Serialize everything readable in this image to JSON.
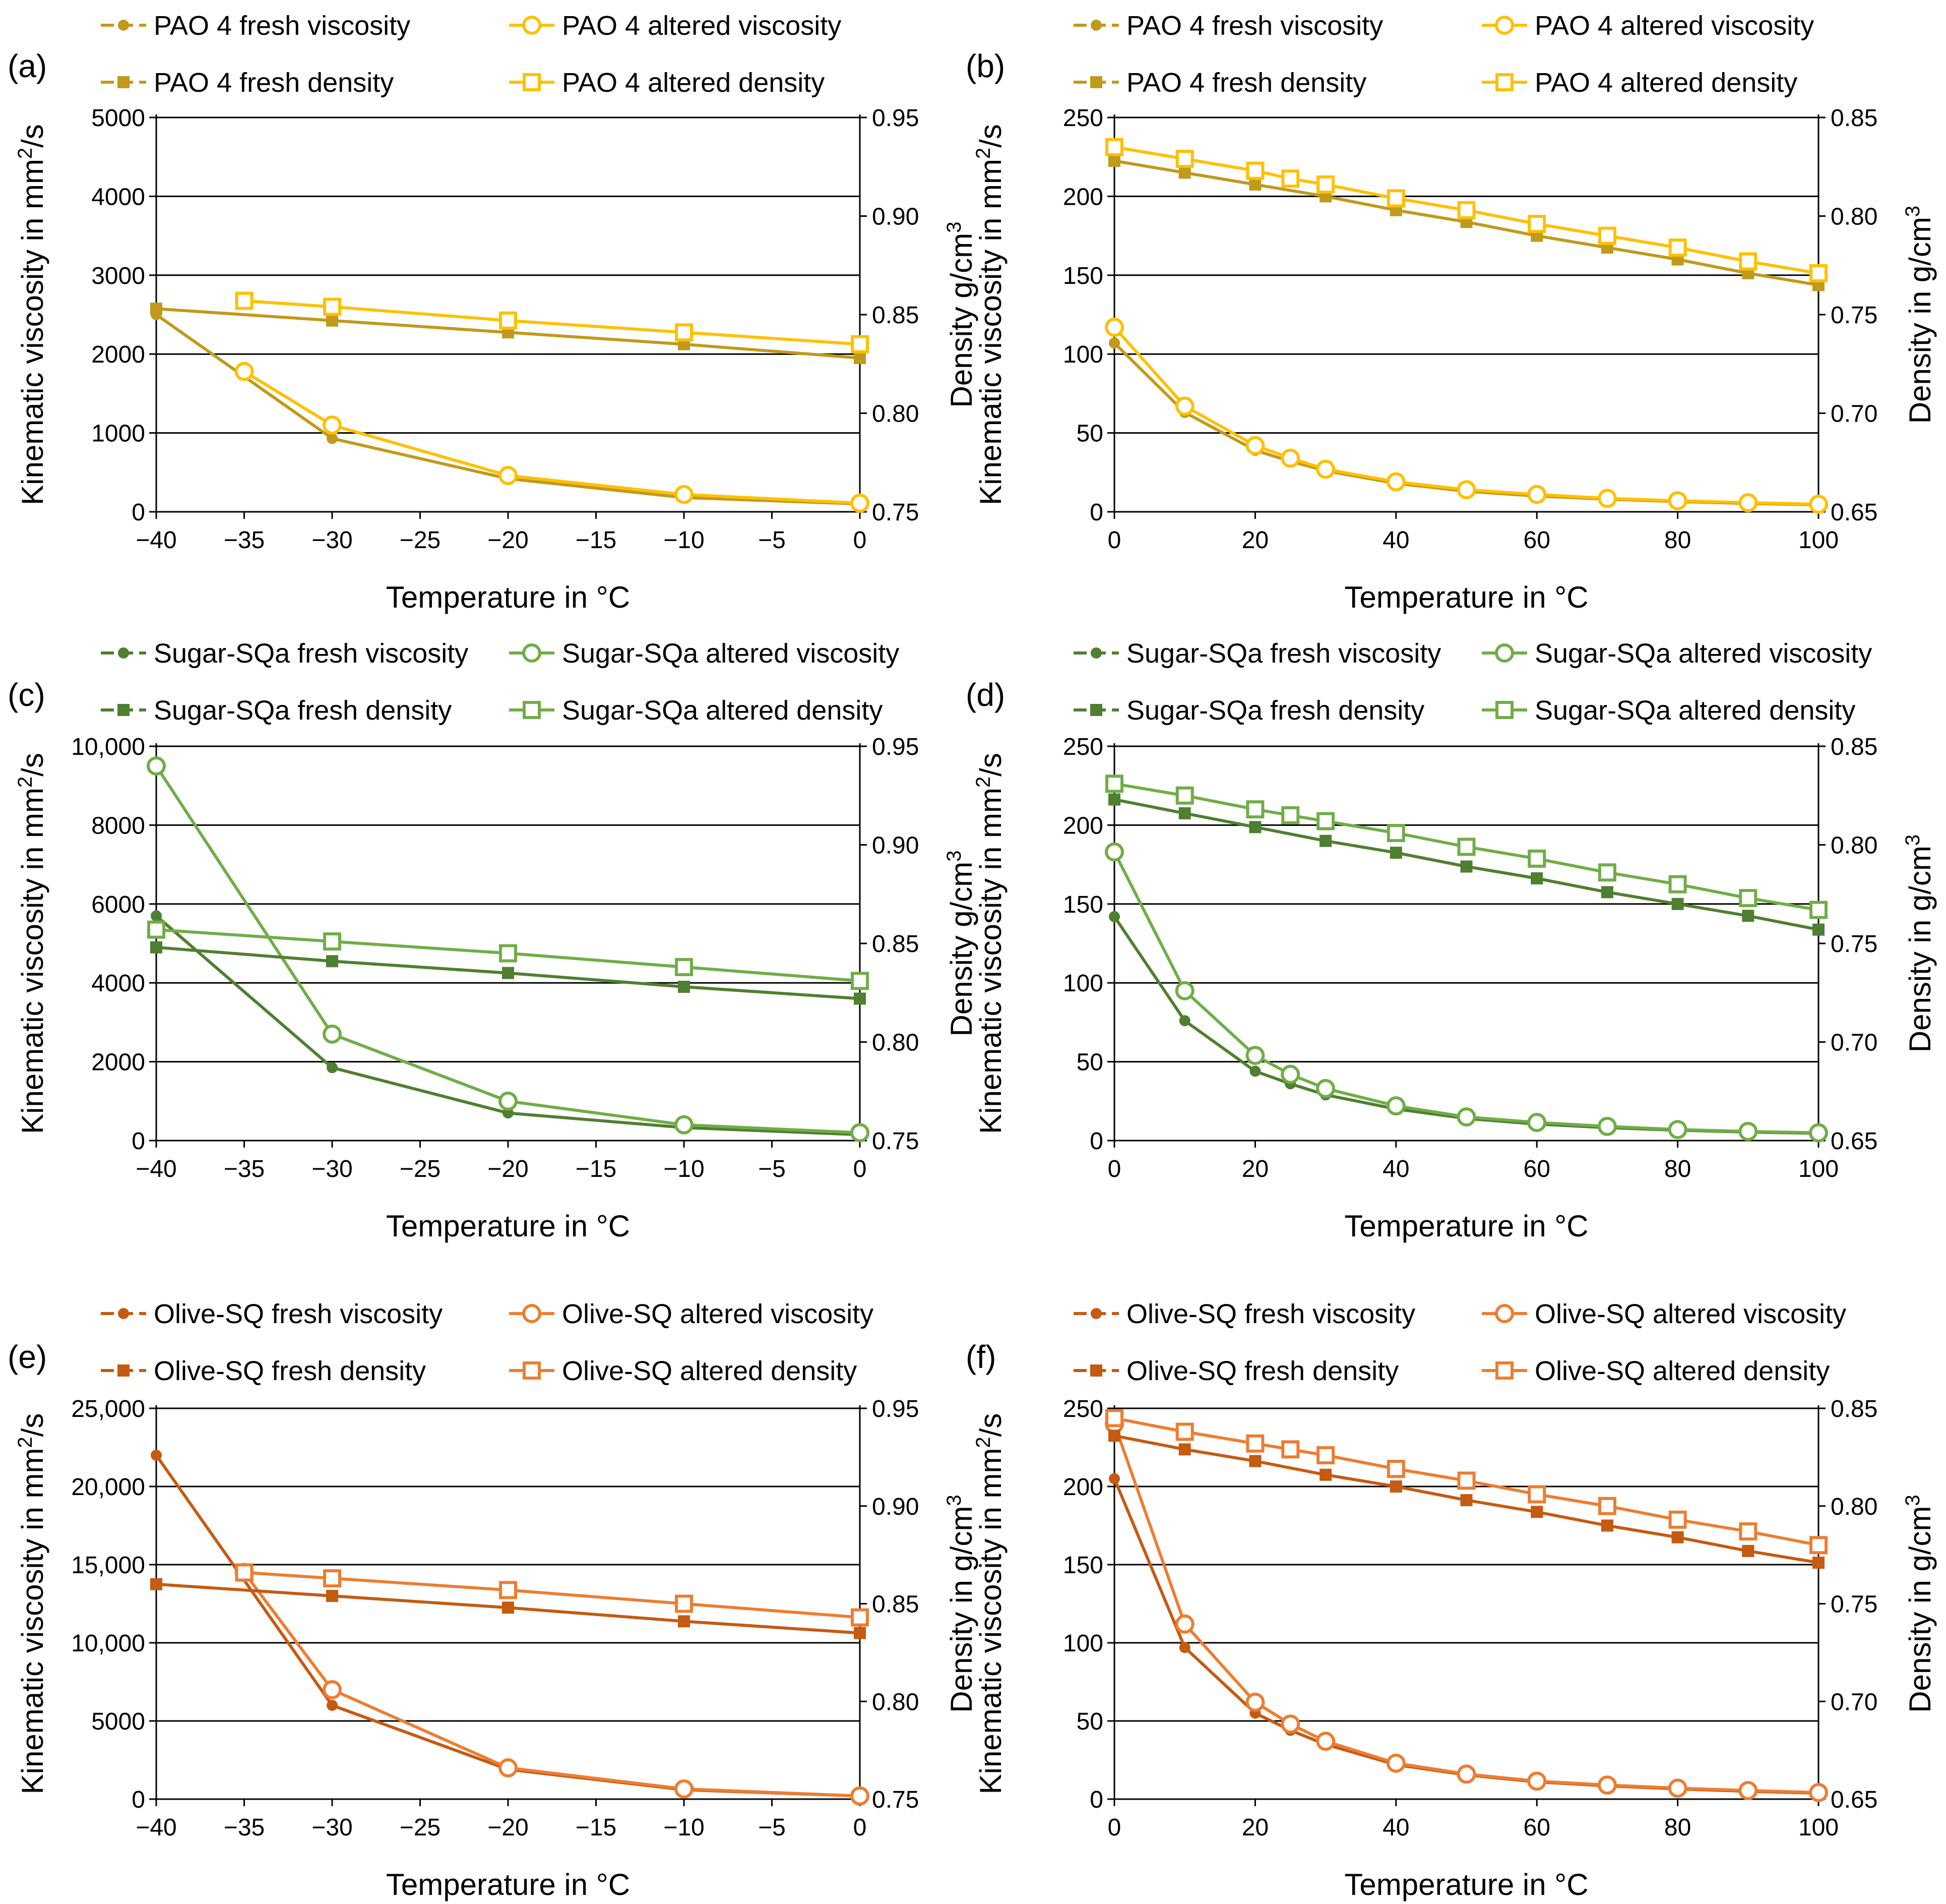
{
  "figure_title": "",
  "colors": {
    "pao_fresh": "#C09A1B",
    "pao_altered": "#FFC000",
    "sugar_fresh": "#4F7F30",
    "sugar_altered": "#70AD47",
    "olive_fresh": "#C55A11",
    "olive_altered": "#ED7D31",
    "grid": "#000000"
  },
  "chart_data": [
    {
      "type": "line",
      "panel_label": "(a)",
      "legend": [
        "PAO 4 fresh viscosity",
        "PAO 4 altered viscosity",
        "PAO 4 fresh density",
        "PAO 4 altered density"
      ],
      "xlabel": "Temperature in °C",
      "ylabel": "Kinematic viscosity in mm²/s",
      "ylabel_main": "Kinematic viscosity in mm",
      "ylabel_sup": "2",
      "ylabel_tail": "/s",
      "y2label": "Density g/cm³",
      "y2label_main": "Density g/cm",
      "y2label_sup": "3",
      "xlim": [
        -40,
        0
      ],
      "ylim": [
        0,
        5000
      ],
      "y2lim": [
        0.75,
        0.95
      ],
      "xticks": [
        "−40",
        "−35",
        "−30",
        "−25",
        "−20",
        "−15",
        "−10",
        "−5",
        "0"
      ],
      "yticks": [
        "0",
        "1000",
        "2000",
        "3000",
        "4000",
        "5000"
      ],
      "y2ticks": [
        "0.75",
        "0.80",
        "0.85",
        "0.90",
        "0.95"
      ],
      "series": [
        {
          "name": "PAO 4 fresh viscosity",
          "axis": "left",
          "marker": "dot",
          "color": "pao_fresh",
          "x": [
            -40,
            -30,
            -20,
            -10,
            0
          ],
          "values": [
            2500,
            930,
            420,
            180,
            100
          ]
        },
        {
          "name": "PAO 4 altered viscosity",
          "axis": "left",
          "marker": "circle",
          "color": "pao_altered",
          "x": [
            -35,
            -30,
            -20,
            -10,
            0
          ],
          "values": [
            1780,
            1100,
            460,
            220,
            110
          ]
        },
        {
          "name": "PAO 4 fresh density",
          "axis": "right",
          "marker": "square",
          "color": "pao_fresh",
          "x": [
            -40,
            -30,
            -20,
            -10,
            0
          ],
          "values": [
            0.853,
            0.847,
            0.841,
            0.835,
            0.828
          ]
        },
        {
          "name": "PAO 4 altered density",
          "axis": "right",
          "marker": "square-open",
          "color": "pao_altered",
          "x": [
            -35,
            -30,
            -20,
            -10,
            0
          ],
          "values": [
            0.857,
            0.854,
            0.847,
            0.841,
            0.835
          ]
        }
      ]
    },
    {
      "type": "line",
      "panel_label": "(b)",
      "legend": [
        "PAO 4 fresh viscosity",
        "PAO 4 altered viscosity",
        "PAO 4 fresh density",
        "PAO 4 altered density"
      ],
      "xlabel": "Temperature in °C",
      "ylabel": "Kinematic viscosity in mm²/s",
      "ylabel_main": "Kinematic viscosity in mm",
      "ylabel_sup": "2",
      "ylabel_tail": "/s",
      "y2label": "Density in g/cm³",
      "y2label_main": "Density in g/cm",
      "y2label_sup": "3",
      "xlim": [
        0,
        100
      ],
      "ylim": [
        0,
        250
      ],
      "y2lim": [
        0.65,
        0.85
      ],
      "xticks": [
        "0",
        "20",
        "40",
        "60",
        "80",
        "100"
      ],
      "yticks": [
        "0",
        "50",
        "100",
        "150",
        "200",
        "250"
      ],
      "y2ticks": [
        "0.65",
        "0.70",
        "0.75",
        "0.80",
        "0.85"
      ],
      "series": [
        {
          "name": "PAO 4 fresh viscosity",
          "axis": "left",
          "marker": "dot",
          "color": "pao_fresh",
          "x": [
            0,
            10,
            20,
            25,
            30,
            40,
            50,
            60,
            70,
            80,
            90,
            100
          ],
          "values": [
            107,
            63,
            39,
            32,
            26,
            18,
            13,
            10,
            8,
            6.5,
            5.3,
            4.4
          ]
        },
        {
          "name": "PAO 4 altered viscosity",
          "axis": "left",
          "marker": "circle",
          "color": "pao_altered",
          "x": [
            0,
            10,
            20,
            25,
            30,
            40,
            50,
            60,
            70,
            80,
            90,
            100
          ],
          "values": [
            117,
            67,
            42,
            34,
            27,
            19,
            14,
            11,
            8.5,
            7,
            5.8,
            4.8
          ]
        },
        {
          "name": "PAO 4 fresh density",
          "axis": "right",
          "marker": "square",
          "color": "pao_fresh",
          "x": [
            0,
            10,
            20,
            30,
            40,
            50,
            60,
            70,
            80,
            90,
            100
          ],
          "values": [
            0.828,
            0.822,
            0.816,
            0.81,
            0.803,
            0.797,
            0.79,
            0.784,
            0.778,
            0.771,
            0.765
          ]
        },
        {
          "name": "PAO 4 altered density",
          "axis": "right",
          "marker": "square-open",
          "color": "pao_altered",
          "x": [
            0,
            10,
            20,
            25,
            30,
            40,
            50,
            60,
            70,
            80,
            90,
            100
          ],
          "values": [
            0.835,
            0.829,
            0.823,
            0.819,
            0.816,
            0.809,
            0.803,
            0.796,
            0.79,
            0.784,
            0.777,
            0.771
          ]
        }
      ]
    },
    {
      "type": "line",
      "panel_label": "(c)",
      "legend": [
        "Sugar-SQa fresh viscosity",
        "Sugar-SQa altered viscosity",
        "Sugar-SQa fresh density",
        "Sugar-SQa altered density"
      ],
      "xlabel": "Temperature in °C",
      "ylabel": "Kinematic viscosity in mm²/s",
      "ylabel_main": "Kinematic viscosity in mm",
      "ylabel_sup": "2",
      "ylabel_tail": "/s",
      "y2label": "Density g/cm³",
      "y2label_main": "Density g/cm",
      "y2label_sup": "3",
      "xlim": [
        -40,
        0
      ],
      "ylim": [
        0,
        10000
      ],
      "y2lim": [
        0.75,
        0.95
      ],
      "xticks": [
        "−40",
        "−35",
        "−30",
        "−25",
        "−20",
        "−15",
        "−10",
        "−5",
        "0"
      ],
      "yticks": [
        "0",
        "2000",
        "4000",
        "6000",
        "8000",
        "10,000"
      ],
      "y2ticks": [
        "0.75",
        "0.80",
        "0.85",
        "0.90",
        "0.95"
      ],
      "series": [
        {
          "name": "Sugar-SQa fresh viscosity",
          "axis": "left",
          "marker": "dot",
          "color": "sugar_fresh",
          "x": [
            -40,
            -30,
            -20,
            -10,
            0
          ],
          "values": [
            5700,
            1850,
            700,
            330,
            150
          ]
        },
        {
          "name": "Sugar-SQa altered viscosity",
          "axis": "left",
          "marker": "circle",
          "color": "sugar_altered",
          "x": [
            -40,
            -30,
            -20,
            -10,
            0
          ],
          "values": [
            9500,
            2700,
            1000,
            400,
            200
          ]
        },
        {
          "name": "Sugar-SQa fresh density",
          "axis": "right",
          "marker": "square",
          "color": "sugar_fresh",
          "x": [
            -40,
            -30,
            -20,
            -10,
            0
          ],
          "values": [
            0.848,
            0.841,
            0.835,
            0.828,
            0.822
          ]
        },
        {
          "name": "Sugar-SQa altered density",
          "axis": "right",
          "marker": "square-open",
          "color": "sugar_altered",
          "x": [
            -40,
            -30,
            -20,
            -10,
            0
          ],
          "values": [
            0.857,
            0.851,
            0.845,
            0.838,
            0.831
          ]
        }
      ]
    },
    {
      "type": "line",
      "panel_label": "(d)",
      "legend": [
        "Sugar-SQa fresh viscosity",
        "Sugar-SQa altered viscosity",
        "Sugar-SQa fresh density",
        "Sugar-SQa altered density"
      ],
      "xlabel": "Temperature in °C",
      "ylabel": "Kinematic viscosity in mm²/s",
      "ylabel_main": "Kinematic viscosity in mm",
      "ylabel_sup": "2",
      "ylabel_tail": "/s",
      "y2label": "Density in g/cm³",
      "y2label_main": "Density in g/cm",
      "y2label_sup": "3",
      "xlim": [
        0,
        100
      ],
      "ylim": [
        0,
        250
      ],
      "y2lim": [
        0.65,
        0.85
      ],
      "xticks": [
        "0",
        "20",
        "40",
        "60",
        "80",
        "100"
      ],
      "yticks": [
        "0",
        "50",
        "100",
        "150",
        "200",
        "250"
      ],
      "y2ticks": [
        "0.65",
        "0.70",
        "0.75",
        "0.80",
        "0.85"
      ],
      "series": [
        {
          "name": "Sugar-SQa fresh viscosity",
          "axis": "left",
          "marker": "dot",
          "color": "sugar_fresh",
          "x": [
            0,
            10,
            20,
            25,
            30,
            40,
            50,
            60,
            70,
            80,
            90,
            100
          ],
          "values": [
            142,
            76,
            44,
            36,
            29,
            20,
            14,
            10.5,
            8.2,
            6.6,
            5.4,
            4.6
          ]
        },
        {
          "name": "Sugar-SQa altered viscosity",
          "axis": "left",
          "marker": "circle",
          "color": "sugar_altered",
          "x": [
            0,
            10,
            20,
            25,
            30,
            40,
            50,
            60,
            70,
            80,
            90,
            100
          ],
          "values": [
            183,
            95,
            54,
            42,
            33,
            22,
            15,
            11.5,
            9,
            7,
            5.8,
            4.9
          ]
        },
        {
          "name": "Sugar-SQa fresh density",
          "axis": "right",
          "marker": "square",
          "color": "sugar_fresh",
          "x": [
            0,
            10,
            20,
            30,
            40,
            50,
            60,
            70,
            80,
            90,
            100
          ],
          "values": [
            0.823,
            0.816,
            0.809,
            0.802,
            0.796,
            0.789,
            0.783,
            0.776,
            0.77,
            0.764,
            0.757
          ]
        },
        {
          "name": "Sugar-SQa altered density",
          "axis": "right",
          "marker": "square-open",
          "color": "sugar_altered",
          "x": [
            0,
            10,
            20,
            25,
            30,
            40,
            50,
            60,
            70,
            80,
            90,
            100
          ],
          "values": [
            0.831,
            0.825,
            0.818,
            0.815,
            0.812,
            0.806,
            0.799,
            0.793,
            0.786,
            0.78,
            0.773,
            0.767
          ]
        }
      ]
    },
    {
      "type": "line",
      "panel_label": "(e)",
      "legend": [
        "Olive-SQ fresh viscosity",
        "Olive-SQ altered viscosity",
        "Olive-SQ fresh density",
        "Olive-SQ altered density"
      ],
      "xlabel": "Temperature in °C",
      "ylabel": "Kinematic viscosity in mm²/s",
      "ylabel_main": "Kinematic viscosity in mm",
      "ylabel_sup": "2",
      "ylabel_tail": "/s",
      "y2label": "Density in g/cm³",
      "y2label_main": "Density in g/cm",
      "y2label_sup": "3",
      "xlim": [
        -40,
        0
      ],
      "ylim": [
        0,
        25000
      ],
      "y2lim": [
        0.75,
        0.95
      ],
      "xticks": [
        "−40",
        "−35",
        "−30",
        "−25",
        "−20",
        "−15",
        "−10",
        "−5",
        "0"
      ],
      "yticks": [
        "0",
        "5000",
        "10,000",
        "15,000",
        "20,000",
        "25,000"
      ],
      "y2ticks": [
        "0.75",
        "0.80",
        "0.85",
        "0.90",
        "0.95"
      ],
      "series": [
        {
          "name": "Olive-SQ fresh viscosity",
          "axis": "left",
          "marker": "dot",
          "color": "olive_fresh",
          "x": [
            -40,
            -30,
            -20,
            -10,
            0
          ],
          "values": [
            22000,
            6000,
            1900,
            600,
            200
          ]
        },
        {
          "name": "Olive-SQ altered viscosity",
          "axis": "left",
          "marker": "circle",
          "color": "olive_altered",
          "x": [
            -35,
            -30,
            -20,
            -10,
            0
          ],
          "values": [
            14500,
            7000,
            2000,
            650,
            200
          ]
        },
        {
          "name": "Olive-SQ fresh density",
          "axis": "right",
          "marker": "square",
          "color": "olive_fresh",
          "x": [
            -40,
            -30,
            -20,
            -10,
            0
          ],
          "values": [
            0.86,
            0.854,
            0.848,
            0.841,
            0.835
          ]
        },
        {
          "name": "Olive-SQ altered density",
          "axis": "right",
          "marker": "square-open",
          "color": "olive_altered",
          "x": [
            -35,
            -30,
            -20,
            -10,
            0
          ],
          "values": [
            0.866,
            0.863,
            0.857,
            0.85,
            0.843
          ]
        }
      ]
    },
    {
      "type": "line",
      "panel_label": "(f)",
      "legend": [
        "Olive-SQ fresh viscosity",
        "Olive-SQ altered viscosity",
        "Olive-SQ fresh density",
        "Olive-SQ altered density"
      ],
      "xlabel": "Temperature in °C",
      "ylabel": "Kinematic viscosity in mm²/s",
      "ylabel_main": "Kinematic viscosity in mm",
      "ylabel_sup": "2",
      "ylabel_tail": "/s",
      "y2label": "Density in g/cm³",
      "y2label_main": "Density in g/cm",
      "y2label_sup": "3",
      "xlim": [
        0,
        100
      ],
      "ylim": [
        0,
        250
      ],
      "y2lim": [
        0.65,
        0.85
      ],
      "xticks": [
        "0",
        "20",
        "40",
        "60",
        "80",
        "100"
      ],
      "yticks": [
        "0",
        "50",
        "100",
        "150",
        "200",
        "250"
      ],
      "y2ticks": [
        "0.65",
        "0.70",
        "0.75",
        "0.80",
        "0.85"
      ],
      "series": [
        {
          "name": "Olive-SQ fresh viscosity",
          "axis": "left",
          "marker": "dot",
          "color": "olive_fresh",
          "x": [
            0,
            10,
            20,
            25,
            30,
            40,
            50,
            60,
            70,
            80,
            90,
            100
          ],
          "values": [
            205,
            97,
            55,
            44,
            35,
            22,
            15.5,
            11,
            8.5,
            6.5,
            5,
            3.8
          ]
        },
        {
          "name": "Olive-SQ altered viscosity",
          "axis": "left",
          "marker": "circle",
          "color": "olive_altered",
          "x": [
            0,
            10,
            20,
            25,
            30,
            40,
            50,
            60,
            70,
            80,
            90,
            100
          ],
          "values": [
            240,
            112,
            62,
            48,
            37,
            23,
            16,
            11.5,
            9,
            7,
            5.5,
            4.2
          ]
        },
        {
          "name": "Olive-SQ fresh density",
          "axis": "right",
          "marker": "square",
          "color": "olive_fresh",
          "x": [
            0,
            10,
            20,
            30,
            40,
            50,
            60,
            70,
            80,
            90,
            100
          ],
          "values": [
            0.836,
            0.829,
            0.823,
            0.816,
            0.81,
            0.803,
            0.797,
            0.79,
            0.784,
            0.777,
            0.771
          ]
        },
        {
          "name": "Olive-SQ altered density",
          "axis": "right",
          "marker": "square-open",
          "color": "olive_altered",
          "x": [
            0,
            10,
            20,
            25,
            30,
            40,
            50,
            60,
            70,
            80,
            90,
            100
          ],
          "values": [
            0.845,
            0.838,
            0.832,
            0.829,
            0.826,
            0.819,
            0.813,
            0.806,
            0.8,
            0.793,
            0.787,
            0.78
          ]
        }
      ]
    }
  ]
}
